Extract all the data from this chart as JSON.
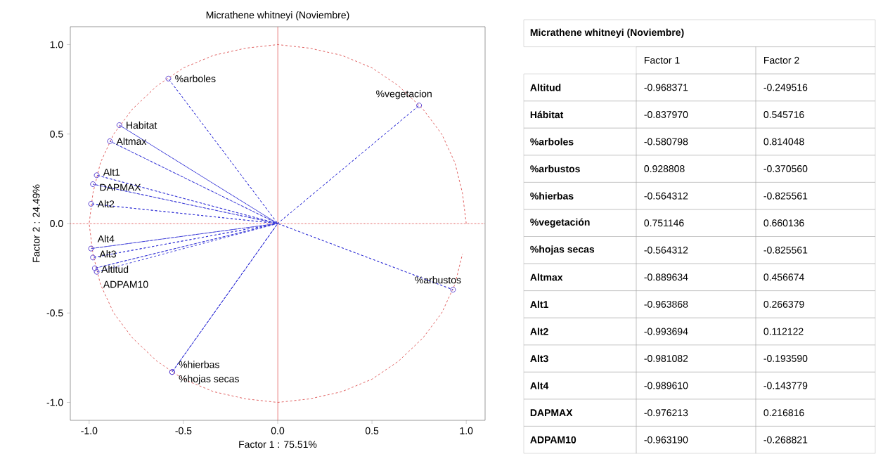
{
  "chart_data": [
    {
      "type": "scatter",
      "title": "Micrathene whitneyi (Noviembre)",
      "xlabel": "Factor 1 : 75.51%",
      "ylabel": "Factor 2 : 24.49%",
      "xlim": [
        -1.1,
        1.1
      ],
      "ylim": [
        -1.1,
        1.1
      ],
      "xticks": [
        {
          "value": -1,
          "label": "-1.0"
        },
        {
          "value": -0.5,
          "label": "-0.5"
        },
        {
          "value": 0,
          "label": "0.0"
        },
        {
          "value": 0.5,
          "label": "0.5"
        },
        {
          "value": 1,
          "label": "1.0"
        }
      ],
      "yticks": [
        {
          "value": -1,
          "label": "-1.0"
        },
        {
          "value": -0.5,
          "label": "-0.5"
        },
        {
          "value": 0,
          "label": "0.0"
        },
        {
          "value": 0.5,
          "label": "0.5"
        },
        {
          "value": 1,
          "label": "1.0"
        }
      ],
      "ref_lines": [
        {
          "axis": "x",
          "value": 0,
          "color": "#e05050"
        },
        {
          "axis": "y",
          "value": 0,
          "color": "#e05050",
          "line_style": "dotted"
        }
      ],
      "series": [
        {
          "type": "line",
          "color": "#e06060",
          "line_style": "dashed",
          "x": [
            1,
            0.98,
            0.94,
            0.87,
            0.77,
            0.64,
            0.5,
            0.34,
            0.17,
            0,
            -0.17,
            -0.34,
            -0.5,
            -0.64,
            -0.77,
            -0.87,
            -0.94,
            -0.98,
            -1,
            -0.98,
            -0.94,
            -0.87,
            -0.77,
            -0.64,
            -0.5,
            -0.34,
            -0.17,
            0,
            0.17,
            0.34,
            0.5,
            0.64,
            0.77,
            0.87,
            0.94,
            0.98
          ],
          "values": [
            0,
            0.17,
            0.34,
            0.5,
            0.64,
            0.77,
            0.87,
            0.94,
            0.98,
            1,
            0.98,
            0.94,
            0.87,
            0.77,
            0.64,
            0.5,
            0.34,
            0.17,
            0,
            -0.17,
            -0.34,
            -0.5,
            -0.64,
            -0.77,
            -0.87,
            -0.94,
            -0.98,
            -1,
            -0.98,
            -0.94,
            -0.87,
            -0.77,
            -0.64,
            -0.5,
            -0.34,
            -0.17
          ]
        },
        {
          "type": "line",
          "color": "#3c3cd8",
          "line_style": "dashed",
          "x": [
            0,
            -0.97,
            0,
            -0.84,
            0,
            -0.58,
            0,
            0.93,
            0,
            -0.56,
            0,
            0.75,
            0,
            -0.56,
            0,
            -0.89,
            0,
            -0.96,
            0,
            -0.99,
            0,
            -0.98,
            0,
            -0.99,
            0,
            -0.98,
            0,
            -0.96
          ],
          "values": [
            0,
            -0.25,
            0,
            0.55,
            0,
            0.81,
            0,
            -0.37,
            0,
            -0.83,
            0,
            0.66,
            0,
            -0.83,
            0,
            0.46,
            0,
            0.27,
            0,
            0.11,
            0,
            -0.19,
            0,
            -0.14,
            0,
            0.22,
            0,
            -0.27
          ]
        },
        {
          "type": "scatter",
          "color": "#5a40d0",
          "marker": "circle",
          "x": [
            -0.97,
            -0.84,
            -0.58,
            0.93,
            -0.56,
            0.75,
            -0.56,
            -0.89,
            -0.96,
            -0.99,
            -0.98,
            -0.99,
            -0.98,
            -0.96
          ],
          "values": [
            -0.25,
            0.55,
            0.81,
            -0.37,
            -0.83,
            0.66,
            -0.83,
            0.46,
            0.27,
            0.11,
            -0.19,
            -0.14,
            0.22,
            -0.27
          ],
          "value_labels": [
            "Altitud",
            "Habitat",
            "%arboles",
            "%arbustos",
            "%hierbas",
            "%vegetacion",
            "%hojas secas",
            "Altmax",
            "Alt1",
            "Alt2",
            "Alt3",
            "Alt4",
            "DAPMAX",
            "ADPAM10"
          ]
        }
      ]
    },
    {
      "type": "other",
      "title": "Micrathene whitneyi (Noviembre)",
      "categories": [
        "Factor 1",
        "Factor 2"
      ],
      "y_categories": [
        "Altitud",
        "Hábitat",
        "%arboles",
        "%arbustos",
        "%hierbas",
        "%vegetación",
        "%hojas secas",
        "Altmax",
        "Alt1",
        "Alt2",
        "Alt3",
        "Alt4",
        "DAPMAX",
        "ADPAM10"
      ],
      "cell_labels": [
        [
          "-0.968371",
          "-0.249516"
        ],
        [
          "-0.837970",
          "0.545716"
        ],
        [
          "-0.580798",
          "0.814048"
        ],
        [
          "0.928808",
          "-0.370560"
        ],
        [
          "-0.564312",
          "-0.825561"
        ],
        [
          "0.751146",
          "0.660136"
        ],
        [
          "-0.564312",
          "-0.825561"
        ],
        [
          "-0.889634",
          "0.456674"
        ],
        [
          "-0.963868",
          "0.266379"
        ],
        [
          "-0.993694",
          "0.112122"
        ],
        [
          "-0.981082",
          "-0.193590"
        ],
        [
          "-0.989610",
          "-0.143779"
        ],
        [
          "-0.976213",
          "0.216816"
        ],
        [
          "-0.963190",
          "-0.268821"
        ]
      ]
    }
  ]
}
